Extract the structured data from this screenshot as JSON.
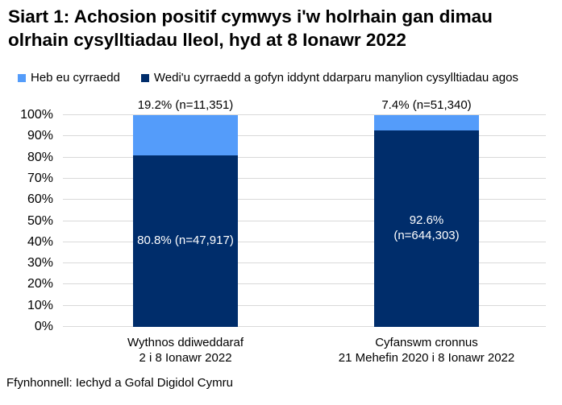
{
  "title": "Siart 1: Achosion positif cymwys i'w holrhain gan dimau\nolrhain cysylltiadau lleol, hyd at 8 Ionawr 2022",
  "source": "Ffynhonnell: Iechyd a Gofal Digidol Cymru",
  "colors": {
    "not_reached": "#549CFA",
    "reached": "#002D6B",
    "gridline": "#D9D9D9",
    "text": "#000000",
    "inside_label_text": "#FFFFFF"
  },
  "legend": {
    "items": [
      {
        "label": "Heb eu cyrraedd",
        "color_key": "not_reached"
      },
      {
        "label": "Wedi'u cyrraedd a gofyn iddynt ddarparu manylion cysylltiadau agos",
        "color_key": "reached"
      }
    ]
  },
  "chart_data": {
    "type": "bar",
    "stacked": true,
    "grid": true,
    "legend_position": "top",
    "title": "Siart 1: Achosion positif cymwys i'w holrhain gan dimau olrhain cysylltiadau lleol, hyd at 8 Ionawr 2022",
    "xlabel": "",
    "ylabel": "",
    "ylim": [
      0,
      100
    ],
    "yticks": [
      "0%",
      "10%",
      "20%",
      "30%",
      "40%",
      "50%",
      "60%",
      "70%",
      "80%",
      "90%",
      "100%"
    ],
    "categories": [
      "Wythnos ddiweddaraf\n2 i 8 Ionawr 2022",
      "Cyfanswm cronnus\n21 Mehefin 2020 i 8 Ionawr 2022"
    ],
    "series": [
      {
        "name": "Wedi'u cyrraedd a gofyn iddynt ddarparu manylion cysylltiadau agos",
        "values": [
          80.8,
          92.6
        ],
        "counts": [
          "47,917",
          "644,303"
        ]
      },
      {
        "name": "Heb eu cyrraedd",
        "values": [
          19.2,
          7.4
        ],
        "counts": [
          "11,351",
          "51,340"
        ]
      }
    ],
    "labels_above": [
      "19.2% (n=11,351)",
      "7.4% (n=51,340)"
    ],
    "labels_inside": [
      "80.8% (n=47,917)",
      "92.6%\n(n=644,303)"
    ]
  }
}
